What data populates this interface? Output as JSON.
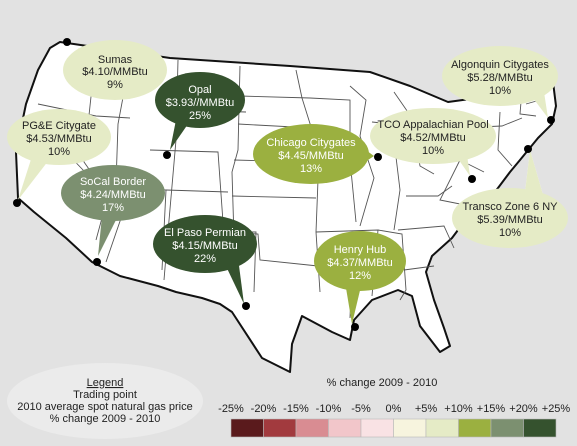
{
  "hubs": [
    {
      "name": "Sumas",
      "price": "$4.10/MMBtu",
      "change": "9%",
      "fill": "#e5ebc6",
      "text_color": "#222222"
    },
    {
      "name": "Opal",
      "price": "$3.93//MMBtu",
      "change": "25%",
      "fill": "#35522e",
      "text_color": "#ffffff"
    },
    {
      "name": "PG&E Citygate",
      "price": "$4.53/MMBtu",
      "change": "10%",
      "fill": "#e5ebc6",
      "text_color": "#222222"
    },
    {
      "name": "SoCal Border",
      "price": "$4.24/MMBtu",
      "change": "17%",
      "fill": "#7c9070",
      "text_color": "#ffffff"
    },
    {
      "name": "El Paso Permian",
      "price": "$4.15/MMBtu",
      "change": "22%",
      "fill": "#35522e",
      "text_color": "#ffffff"
    },
    {
      "name": "Chicago Citygates",
      "price": "$4.45/MMBtu",
      "change": "13%",
      "fill": "#9bb040",
      "text_color": "#ffffff"
    },
    {
      "name": "Henry Hub",
      "price": "$4.37/MMBtu",
      "change": "12%",
      "fill": "#9bb040",
      "text_color": "#ffffff"
    },
    {
      "name": "TCO Appalachian Pool",
      "price": "$4.52/MMBtu",
      "change": "10%",
      "fill": "#e5ebc6",
      "text_color": "#222222"
    },
    {
      "name": "Algonquin Citygates",
      "price": "$5.28/MMBtu",
      "change": "10%",
      "fill": "#e5ebc6",
      "text_color": "#222222"
    },
    {
      "name": "Transco Zone 6 NY",
      "price": "$5.39/MMBtu",
      "change": "10%",
      "fill": "#e5ebc6",
      "text_color": "#222222"
    }
  ],
  "legend": {
    "title": "Legend",
    "line1": "Trading point",
    "line2": "2010 average spot natural gas price",
    "line3": "% change 2009 - 2010"
  },
  "scale": {
    "title": "% change 2009 - 2010",
    "ticks": [
      "-25%",
      "-20%",
      "-15%",
      "-10%",
      "-5%",
      "0%",
      "+5%",
      "+10%",
      "+15%",
      "+20%",
      "+25%"
    ],
    "colors": [
      "#5a1a1c",
      "#a23a3e",
      "#d98c92",
      "#f2c6ca",
      "#f9e2e4",
      "#f7f4de",
      "#e5ebc6",
      "#9bb040",
      "#7c9070",
      "#35522e"
    ]
  }
}
